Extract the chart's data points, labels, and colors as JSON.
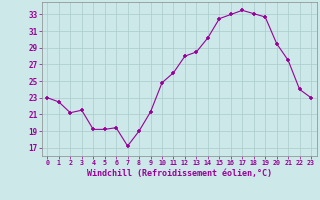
{
  "x": [
    0,
    1,
    2,
    3,
    4,
    5,
    6,
    7,
    8,
    9,
    10,
    11,
    12,
    13,
    14,
    15,
    16,
    17,
    18,
    19,
    20,
    21,
    22,
    23
  ],
  "y": [
    23,
    22.5,
    21.2,
    21.5,
    19.2,
    19.2,
    19.4,
    17.2,
    19.0,
    21.3,
    24.8,
    26.0,
    28.0,
    28.5,
    30.2,
    32.5,
    33.0,
    33.5,
    33.1,
    32.7,
    29.5,
    27.5,
    24.0,
    23.0
  ],
  "line_color": "#990099",
  "marker": "+",
  "marker_color": "#990099",
  "bg_color": "#cce8e8",
  "grid_color": "#aacccc",
  "xlabel": "Windchill (Refroidissement éolien,°C)",
  "xlabel_color": "#990099",
  "tick_color": "#990099",
  "ylabel_vals": [
    17,
    19,
    21,
    23,
    25,
    27,
    29,
    31,
    33
  ],
  "ylim": [
    16.0,
    34.5
  ],
  "xlim": [
    -0.5,
    23.5
  ],
  "font_name": "monospace"
}
